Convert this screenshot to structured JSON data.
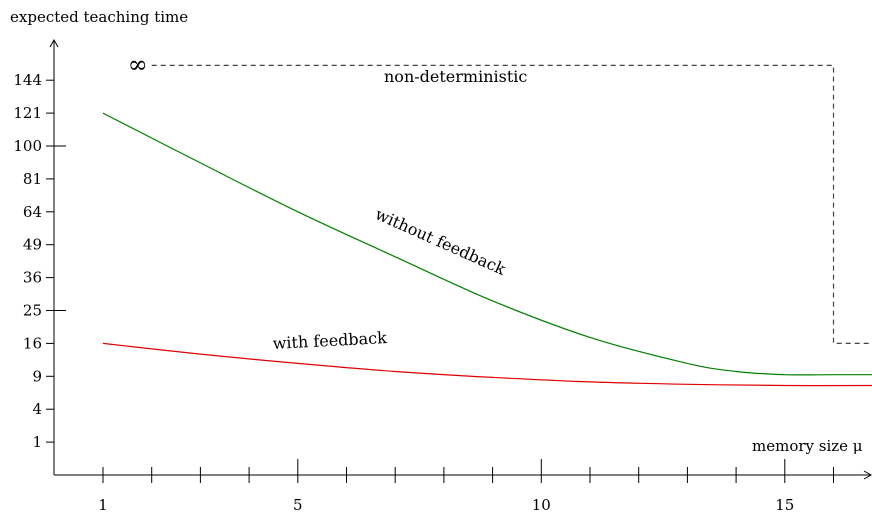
{
  "chart_data": {
    "type": "line",
    "ylabel": "expected teaching time",
    "xlabel": "memory size μ",
    "x_ticks": [
      1,
      5,
      10,
      15
    ],
    "y_ticks": [
      "144",
      "121",
      "100",
      "81",
      "64",
      "49",
      "36",
      "25",
      "16",
      "9",
      "4",
      "1"
    ],
    "y_tick_values": [
      144,
      121,
      100,
      81,
      64,
      49,
      36,
      25,
      16,
      9,
      4,
      1
    ],
    "xlim": [
      0,
      16.8
    ],
    "y_scale": "sqrt",
    "ylim": [
      0,
      164
    ],
    "series": [
      {
        "name": "without feedback",
        "color": "#008000",
        "x": [
          1,
          3,
          5,
          7,
          9,
          11,
          13,
          14,
          15,
          16,
          16.8
        ],
        "y": [
          121,
          90,
          64,
          44,
          28,
          17.5,
          11.5,
          9.9,
          9.3,
          9.3,
          9.3
        ]
      },
      {
        "name": "with feedback",
        "color": "#e00000",
        "x": [
          1,
          3,
          5,
          7,
          9,
          11,
          13,
          15,
          16.8
        ],
        "y": [
          16,
          13.5,
          11.5,
          9.9,
          8.8,
          8.0,
          7.6,
          7.4,
          7.4
        ]
      },
      {
        "name": "non-deterministic",
        "color": "#444444",
        "style": "dashed",
        "label_infinity": "∞",
        "x": [
          2,
          16,
          16,
          16.8
        ],
        "y": [
          155,
          155,
          16,
          16
        ]
      }
    ]
  }
}
